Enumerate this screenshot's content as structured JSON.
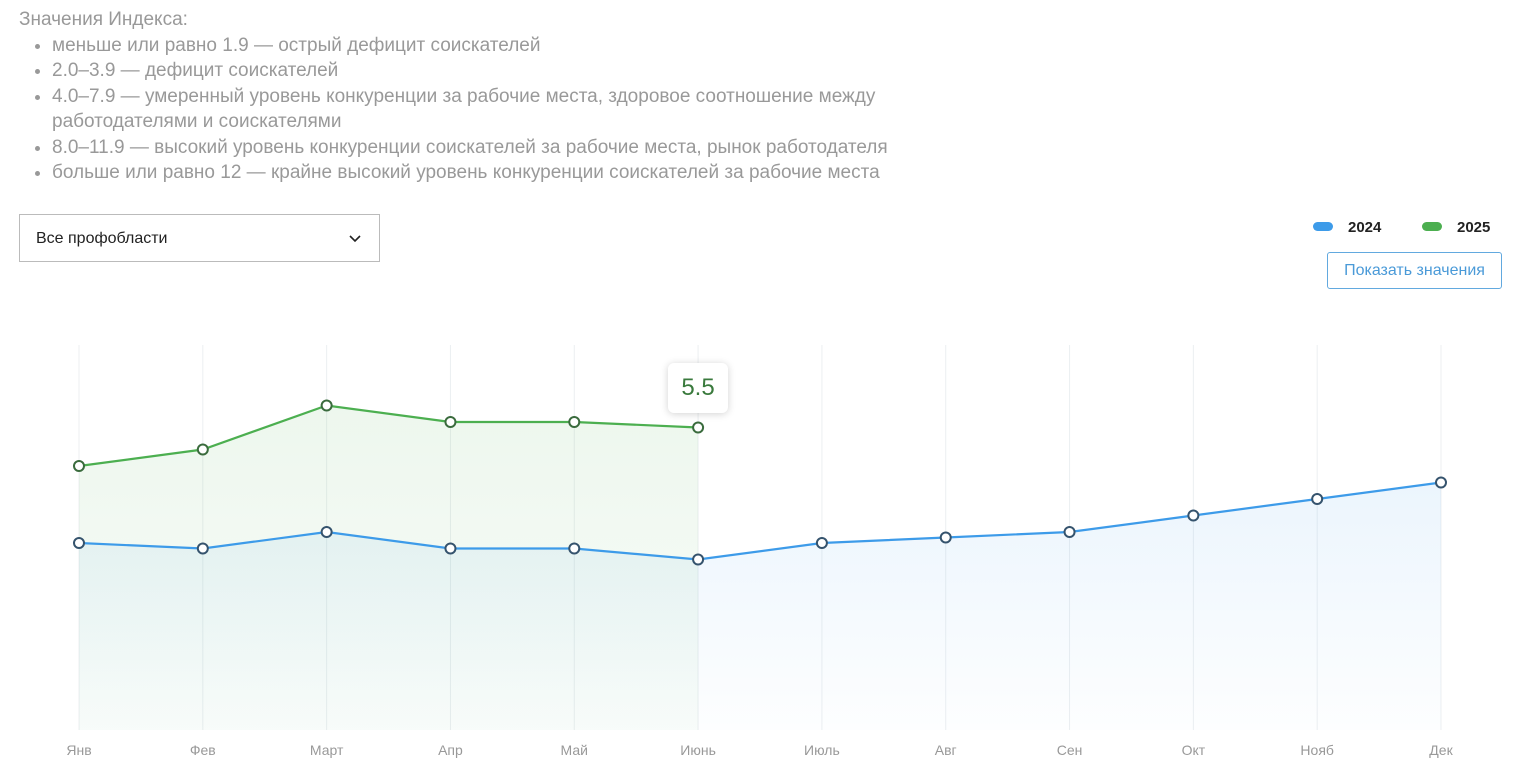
{
  "intro": {
    "title": "Значения Индекса:",
    "items": [
      "меньше или равно 1.9 — острый дефицит соискателей",
      "2.0–3.9 — дефицит соискателей",
      "4.0–7.9 — умеренный уровень конкуренции за рабочие места, здоровое соотношение между работодателями и соискателями",
      "8.0–11.9 — высокий уровень конкуренции соискателей за рабочие места, рынок работодателя",
      "больше или равно 12 — крайне высокий уровень конкуренции соискателей за рабочие места"
    ]
  },
  "dropdown": {
    "label": "Все профобласти"
  },
  "button": {
    "label": "Показать значения"
  },
  "chart_data": {
    "type": "line",
    "categories": [
      "Янв",
      "Фев",
      "Март",
      "Апр",
      "Май",
      "Июнь",
      "Июль",
      "Авг",
      "Сен",
      "Окт",
      "Нояб",
      "Дек"
    ],
    "series": [
      {
        "name": "2024",
        "color": "#3d9be9",
        "marker_color": "#35536d",
        "values": [
          3.4,
          3.3,
          3.6,
          3.3,
          3.3,
          3.1,
          3.4,
          3.5,
          3.6,
          3.9,
          4.2,
          4.5
        ]
      },
      {
        "name": "2025",
        "color": "#4caf50",
        "marker_color": "#3a6b3d",
        "values": [
          4.8,
          5.1,
          5.9,
          5.6,
          5.6,
          5.5,
          null,
          null,
          null,
          null,
          null,
          null
        ]
      }
    ],
    "ylim": [
      0,
      7
    ]
  }
}
